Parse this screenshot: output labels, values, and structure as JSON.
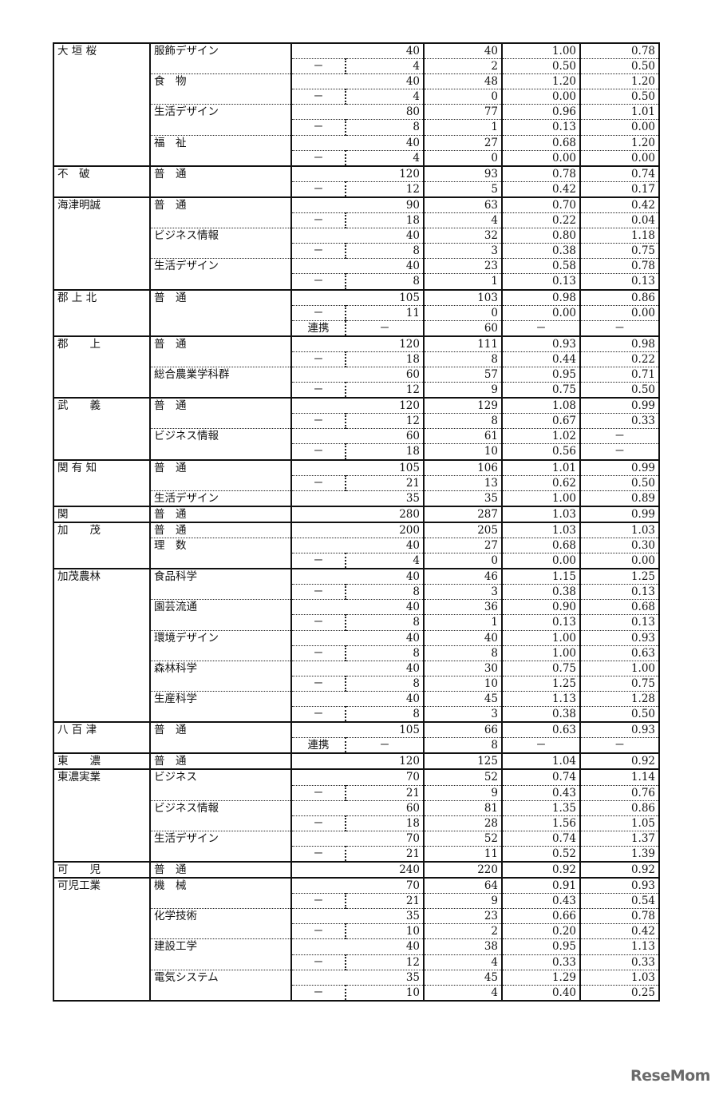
{
  "logo": "ReseMom",
  "schools": [
    {
      "name": "大 垣 桜",
      "courses": [
        {
          "name": "服飾デザイン",
          "rows": [
            {
              "t": "main",
              "cap": "40",
              "app": "40",
              "ratio": "1.00",
              "prev": "0.78"
            },
            {
              "t": "sub",
              "sub": "－",
              "cap": "4",
              "app": "2",
              "ratio": "0.50",
              "prev": "0.50"
            }
          ]
        },
        {
          "name": "食　物",
          "rows": [
            {
              "t": "main",
              "cap": "40",
              "app": "48",
              "ratio": "1.20",
              "prev": "1.20"
            },
            {
              "t": "sub",
              "sub": "－",
              "cap": "4",
              "app": "0",
              "ratio": "0.00",
              "prev": "0.50"
            }
          ]
        },
        {
          "name": "生活デザイン",
          "rows": [
            {
              "t": "main",
              "cap": "80",
              "app": "77",
              "ratio": "0.96",
              "prev": "1.01"
            },
            {
              "t": "sub",
              "sub": "－",
              "cap": "8",
              "app": "1",
              "ratio": "0.13",
              "prev": "0.00"
            }
          ]
        },
        {
          "name": "福　祉",
          "rows": [
            {
              "t": "main",
              "cap": "40",
              "app": "27",
              "ratio": "0.68",
              "prev": "1.20"
            },
            {
              "t": "sub",
              "sub": "－",
              "cap": "4",
              "app": "0",
              "ratio": "0.00",
              "prev": "0.00"
            }
          ]
        }
      ]
    },
    {
      "name": "不　破",
      "courses": [
        {
          "name": "普　通",
          "rows": [
            {
              "t": "main",
              "cap": "120",
              "app": "93",
              "ratio": "0.78",
              "prev": "0.74"
            },
            {
              "t": "sub",
              "sub": "－",
              "cap": "12",
              "app": "5",
              "ratio": "0.42",
              "prev": "0.17"
            }
          ]
        }
      ]
    },
    {
      "name": "海津明誠",
      "courses": [
        {
          "name": "普　通",
          "rows": [
            {
              "t": "main",
              "cap": "90",
              "app": "63",
              "ratio": "0.70",
              "prev": "0.42"
            },
            {
              "t": "sub",
              "sub": "－",
              "cap": "18",
              "app": "4",
              "ratio": "0.22",
              "prev": "0.04"
            }
          ]
        },
        {
          "name": "ビジネス情報",
          "rows": [
            {
              "t": "main",
              "cap": "40",
              "app": "32",
              "ratio": "0.80",
              "prev": "1.18"
            },
            {
              "t": "sub",
              "sub": "－",
              "cap": "8",
              "app": "3",
              "ratio": "0.38",
              "prev": "0.75"
            }
          ]
        },
        {
          "name": "生活デザイン",
          "rows": [
            {
              "t": "main",
              "cap": "40",
              "app": "23",
              "ratio": "0.58",
              "prev": "0.78"
            },
            {
              "t": "sub",
              "sub": "－",
              "cap": "8",
              "app": "1",
              "ratio": "0.13",
              "prev": "0.13"
            }
          ]
        }
      ]
    },
    {
      "name": "郡 上 北",
      "courses": [
        {
          "name": "普　通",
          "rows": [
            {
              "t": "main",
              "cap": "105",
              "app": "103",
              "ratio": "0.98",
              "prev": "0.86"
            },
            {
              "t": "sub",
              "sub": "－",
              "cap": "11",
              "app": "0",
              "ratio": "0.00",
              "prev": "0.00"
            },
            {
              "t": "renkei",
              "sub": "連携",
              "cap": "－",
              "app": "60",
              "ratio": "－",
              "prev": "－"
            }
          ]
        }
      ]
    },
    {
      "name": "郡　　上",
      "courses": [
        {
          "name": "普　通",
          "rows": [
            {
              "t": "main",
              "cap": "120",
              "app": "111",
              "ratio": "0.93",
              "prev": "0.98"
            },
            {
              "t": "sub",
              "sub": "－",
              "cap": "18",
              "app": "8",
              "ratio": "0.44",
              "prev": "0.22"
            }
          ]
        },
        {
          "name": "総合農業学科群",
          "rows": [
            {
              "t": "main",
              "cap": "60",
              "app": "57",
              "ratio": "0.95",
              "prev": "0.71"
            },
            {
              "t": "sub",
              "sub": "－",
              "cap": "12",
              "app": "9",
              "ratio": "0.75",
              "prev": "0.50"
            }
          ]
        }
      ]
    },
    {
      "name": "武　　義",
      "courses": [
        {
          "name": "普　通",
          "rows": [
            {
              "t": "main",
              "cap": "120",
              "app": "129",
              "ratio": "1.08",
              "prev": "0.99"
            },
            {
              "t": "sub",
              "sub": "－",
              "cap": "12",
              "app": "8",
              "ratio": "0.67",
              "prev": "0.33"
            }
          ]
        },
        {
          "name": "ビジネス情報",
          "rows": [
            {
              "t": "main",
              "cap": "60",
              "app": "61",
              "ratio": "1.02",
              "prev": "－"
            },
            {
              "t": "sub",
              "sub": "－",
              "cap": "18",
              "app": "10",
              "ratio": "0.56",
              "prev": "－"
            }
          ]
        }
      ]
    },
    {
      "name": "関 有 知",
      "courses": [
        {
          "name": "普　通",
          "rows": [
            {
              "t": "main",
              "cap": "105",
              "app": "106",
              "ratio": "1.01",
              "prev": "0.99"
            },
            {
              "t": "sub",
              "sub": "－",
              "cap": "21",
              "app": "13",
              "ratio": "0.62",
              "prev": "0.50"
            }
          ]
        },
        {
          "name": "生活デザイン",
          "rows": [
            {
              "t": "main",
              "cap": "35",
              "app": "35",
              "ratio": "1.00",
              "prev": "0.89"
            }
          ]
        }
      ]
    },
    {
      "name": "関",
      "courses": [
        {
          "name": "普　通",
          "rows": [
            {
              "t": "main",
              "cap": "280",
              "app": "287",
              "ratio": "1.03",
              "prev": "0.99"
            }
          ]
        }
      ]
    },
    {
      "name": "加　　茂",
      "courses": [
        {
          "name": "普　通",
          "rows": [
            {
              "t": "main",
              "cap": "200",
              "app": "205",
              "ratio": "1.03",
              "prev": "1.03"
            }
          ]
        },
        {
          "name": "理　数",
          "rows": [
            {
              "t": "main",
              "cap": "40",
              "app": "27",
              "ratio": "0.68",
              "prev": "0.30"
            },
            {
              "t": "sub",
              "sub": "－",
              "cap": "4",
              "app": "0",
              "ratio": "0.00",
              "prev": "0.00"
            }
          ]
        }
      ]
    },
    {
      "name": "加茂農林",
      "courses": [
        {
          "name": "食品科学",
          "rows": [
            {
              "t": "main",
              "cap": "40",
              "app": "46",
              "ratio": "1.15",
              "prev": "1.25"
            },
            {
              "t": "sub",
              "sub": "－",
              "cap": "8",
              "app": "3",
              "ratio": "0.38",
              "prev": "0.13"
            }
          ]
        },
        {
          "name": "園芸流通",
          "rows": [
            {
              "t": "main",
              "cap": "40",
              "app": "36",
              "ratio": "0.90",
              "prev": "0.68"
            },
            {
              "t": "sub",
              "sub": "－",
              "cap": "8",
              "app": "1",
              "ratio": "0.13",
              "prev": "0.13"
            }
          ]
        },
        {
          "name": "環境デザイン",
          "rows": [
            {
              "t": "main",
              "cap": "40",
              "app": "40",
              "ratio": "1.00",
              "prev": "0.93"
            },
            {
              "t": "sub",
              "sub": "－",
              "cap": "8",
              "app": "8",
              "ratio": "1.00",
              "prev": "0.63"
            }
          ]
        },
        {
          "name": "森林科学",
          "rows": [
            {
              "t": "main",
              "cap": "40",
              "app": "30",
              "ratio": "0.75",
              "prev": "1.00"
            },
            {
              "t": "sub",
              "sub": "－",
              "cap": "8",
              "app": "10",
              "ratio": "1.25",
              "prev": "0.75"
            }
          ]
        },
        {
          "name": "生産科学",
          "rows": [
            {
              "t": "main",
              "cap": "40",
              "app": "45",
              "ratio": "1.13",
              "prev": "1.28"
            },
            {
              "t": "sub",
              "sub": "－",
              "cap": "8",
              "app": "3",
              "ratio": "0.38",
              "prev": "0.50"
            }
          ]
        }
      ]
    },
    {
      "name": "八 百 津",
      "courses": [
        {
          "name": "普　通",
          "rows": [
            {
              "t": "main",
              "cap": "105",
              "app": "66",
              "ratio": "0.63",
              "prev": "0.93"
            },
            {
              "t": "renkei",
              "sub": "連携",
              "cap": "－",
              "app": "8",
              "ratio": "－",
              "prev": "－"
            }
          ]
        }
      ]
    },
    {
      "name": "東　　濃",
      "courses": [
        {
          "name": "普　通",
          "rows": [
            {
              "t": "main",
              "cap": "120",
              "app": "125",
              "ratio": "1.04",
              "prev": "0.92"
            }
          ]
        }
      ]
    },
    {
      "name": "東濃実業",
      "courses": [
        {
          "name": "ビジネス",
          "rows": [
            {
              "t": "main",
              "cap": "70",
              "app": "52",
              "ratio": "0.74",
              "prev": "1.14"
            },
            {
              "t": "sub",
              "sub": "－",
              "cap": "21",
              "app": "9",
              "ratio": "0.43",
              "prev": "0.76"
            }
          ]
        },
        {
          "name": "ビジネス情報",
          "rows": [
            {
              "t": "main",
              "cap": "60",
              "app": "81",
              "ratio": "1.35",
              "prev": "0.86"
            },
            {
              "t": "sub",
              "sub": "－",
              "cap": "18",
              "app": "28",
              "ratio": "1.56",
              "prev": "1.05"
            }
          ]
        },
        {
          "name": "生活デザイン",
          "rows": [
            {
              "t": "main",
              "cap": "70",
              "app": "52",
              "ratio": "0.74",
              "prev": "1.37"
            },
            {
              "t": "sub",
              "sub": "－",
              "cap": "21",
              "app": "11",
              "ratio": "0.52",
              "prev": "1.39"
            }
          ]
        }
      ]
    },
    {
      "name": "可　　児",
      "courses": [
        {
          "name": "普　通",
          "rows": [
            {
              "t": "main",
              "cap": "240",
              "app": "220",
              "ratio": "0.92",
              "prev": "0.92"
            }
          ]
        }
      ]
    },
    {
      "name": "可児工業",
      "courses": [
        {
          "name": "機　械",
          "rows": [
            {
              "t": "main",
              "cap": "70",
              "app": "64",
              "ratio": "0.91",
              "prev": "0.93"
            },
            {
              "t": "sub",
              "sub": "－",
              "cap": "21",
              "app": "9",
              "ratio": "0.43",
              "prev": "0.54"
            }
          ]
        },
        {
          "name": "化学技術",
          "rows": [
            {
              "t": "main",
              "cap": "35",
              "app": "23",
              "ratio": "0.66",
              "prev": "0.78"
            },
            {
              "t": "sub",
              "sub": "－",
              "cap": "10",
              "app": "2",
              "ratio": "0.20",
              "prev": "0.42"
            }
          ]
        },
        {
          "name": "建設工学",
          "rows": [
            {
              "t": "main",
              "cap": "40",
              "app": "38",
              "ratio": "0.95",
              "prev": "1.13"
            },
            {
              "t": "sub",
              "sub": "－",
              "cap": "12",
              "app": "4",
              "ratio": "0.33",
              "prev": "0.33"
            }
          ]
        },
        {
          "name": "電気システム",
          "rows": [
            {
              "t": "main",
              "cap": "35",
              "app": "45",
              "ratio": "1.29",
              "prev": "1.03"
            },
            {
              "t": "sub",
              "sub": "－",
              "cap": "10",
              "app": "4",
              "ratio": "0.40",
              "prev": "0.25"
            }
          ]
        }
      ]
    }
  ]
}
